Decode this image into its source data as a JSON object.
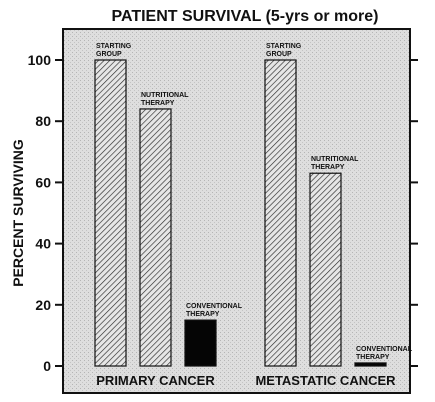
{
  "chart_data": {
    "type": "bar",
    "title": "PATIENT SURVIVAL (5-yrs or more)",
    "ylabel": "PERCENT SURVIVING",
    "xlabel": "",
    "ylim": [
      -2,
      110
    ],
    "yticks": [
      0,
      20,
      40,
      60,
      80,
      100
    ],
    "grid": false,
    "groups": [
      {
        "label": "PRIMARY CANCER",
        "bars": [
          {
            "label": [
              "STARTING",
              "GROUP"
            ],
            "value": 100,
            "fill": "hatch"
          },
          {
            "label": [
              "NUTRITIONAL",
              "THERAPY"
            ],
            "value": 84,
            "fill": "hatch"
          },
          {
            "label": [
              "CONVENTIONAL",
              "THERAPY"
            ],
            "value": 15,
            "fill": "solid"
          }
        ]
      },
      {
        "label": "METASTATIC CANCER",
        "bars": [
          {
            "label": [
              "STARTING",
              "GROUP"
            ],
            "value": 100,
            "fill": "hatch"
          },
          {
            "label": [
              "NUTRITIONAL",
              "THERAPY"
            ],
            "value": 63,
            "fill": "hatch"
          },
          {
            "label": [
              "CONVENTIONAL",
              "THERAPY"
            ],
            "value": 1,
            "fill": "solid"
          }
        ]
      }
    ]
  },
  "colors": {
    "ink": "#111111",
    "plot_bg": "#dcdcdc",
    "hatch_bg": "#e4e4e4",
    "solid_bar": "#050505"
  }
}
